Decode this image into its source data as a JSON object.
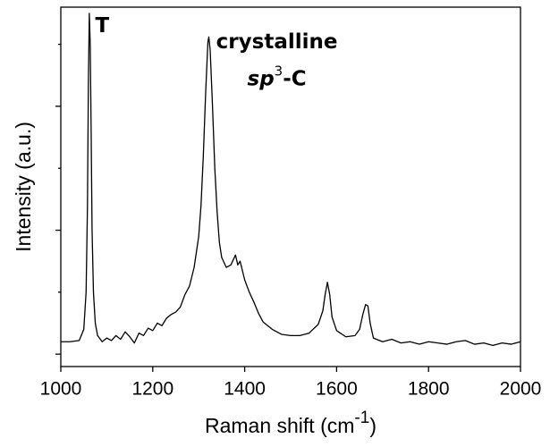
{
  "chart_data": {
    "type": "line",
    "x_label_parts": [
      "Raman shift (cm",
      "-1",
      ")"
    ],
    "y_label": "Intensity (a.u.)",
    "xlim": [
      1000,
      2000
    ],
    "xticks": [
      1000,
      1200,
      1400,
      1600,
      1800,
      2000
    ],
    "ylim": [
      -1,
      28
    ],
    "yticks": [
      0,
      5,
      10,
      15,
      20,
      25
    ],
    "color": "#000000",
    "annotations": [
      {
        "parts": [
          "T"
        ],
        "x": 1075,
        "y": 26.5
      },
      {
        "parts": [
          "crystalline"
        ],
        "x": 1470,
        "y": 25.2
      },
      {
        "parts": [
          "sp",
          "3",
          "-C"
        ],
        "x": 1470,
        "y": 22.2
      }
    ],
    "x": [
      1000,
      1020,
      1040,
      1050,
      1055,
      1058,
      1060,
      1062,
      1064,
      1066,
      1068,
      1071,
      1075,
      1080,
      1090,
      1100,
      1110,
      1120,
      1130,
      1140,
      1150,
      1160,
      1170,
      1180,
      1190,
      1200,
      1210,
      1220,
      1230,
      1240,
      1250,
      1260,
      1270,
      1280,
      1290,
      1300,
      1305,
      1310,
      1315,
      1320,
      1322,
      1325,
      1330,
      1335,
      1340,
      1345,
      1350,
      1360,
      1370,
      1380,
      1385,
      1390,
      1400,
      1410,
      1420,
      1430,
      1440,
      1460,
      1480,
      1500,
      1520,
      1540,
      1560,
      1570,
      1575,
      1580,
      1585,
      1590,
      1600,
      1620,
      1640,
      1650,
      1657,
      1663,
      1668,
      1673,
      1680,
      1700,
      1720,
      1740,
      1760,
      1780,
      1800,
      1820,
      1840,
      1860,
      1880,
      1900,
      1920,
      1940,
      1960,
      1980,
      2000
    ],
    "values": [
      1.0,
      1.0,
      1.1,
      2.0,
      5,
      12,
      22,
      27.5,
      25,
      18,
      10,
      5,
      2.5,
      1.5,
      1.0,
      1.3,
      1.1,
      1.5,
      1.2,
      1.8,
      1.4,
      0.9,
      1.7,
      1.5,
      2.1,
      1.9,
      2.5,
      2.3,
      2.9,
      3.2,
      3.4,
      3.8,
      4.8,
      5.5,
      7,
      9.5,
      12,
      16,
      21,
      25.2,
      25.6,
      24.5,
      20,
      15,
      11.5,
      9,
      7.8,
      7,
      7.2,
      8.0,
      7.2,
      7.5,
      6,
      5,
      4.2,
      3.3,
      2.6,
      2.0,
      1.6,
      1.5,
      1.5,
      1.7,
      2.4,
      3.5,
      4.8,
      5.8,
      4.8,
      3,
      1.9,
      1.4,
      1.5,
      2.0,
      3.2,
      4.0,
      3.9,
      2.5,
      1.3,
      1.0,
      1.2,
      0.9,
      1.0,
      0.8,
      1.0,
      0.9,
      0.8,
      1.0,
      1.1,
      0.8,
      0.9,
      0.7,
      0.9,
      0.8,
      1.0
    ]
  }
}
